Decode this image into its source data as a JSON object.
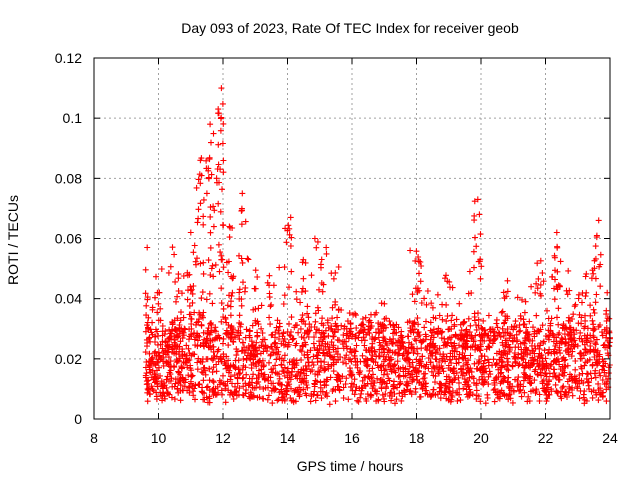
{
  "chart_data": {
    "type": "scatter",
    "title": "Day 093 of 2023, Rate Of TEC Index for receiver geob",
    "xlabel": "GPS time / hours",
    "ylabel": "ROTI / TECUs",
    "xlim": [
      8,
      24
    ],
    "ylim": [
      0,
      0.12
    ],
    "xticks": [
      "8",
      "10",
      "12",
      "14",
      "16",
      "18",
      "20",
      "22",
      "24"
    ],
    "yticks": [
      "0",
      "0.02",
      "0.04",
      "0.06",
      "0.08",
      "0.1",
      "0.12"
    ],
    "grid": true,
    "marker": "+",
    "color": "#ff0000",
    "series": [
      {
        "name": "ROTI",
        "envelope_hours": [
          9.6,
          10.0,
          10.5,
          11.0,
          11.3,
          11.6,
          11.9,
          12.2,
          12.6,
          13.0,
          13.5,
          14.0,
          14.5,
          15.0,
          15.5,
          16.0,
          16.5,
          17.0,
          17.5,
          18.0,
          18.5,
          19.0,
          19.5,
          19.9,
          20.3,
          20.8,
          21.3,
          21.8,
          22.3,
          22.8,
          23.2,
          23.6,
          24.0
        ],
        "envelope_max_roti": [
          0.056,
          0.05,
          0.058,
          0.062,
          0.087,
          0.099,
          0.11,
          0.064,
          0.074,
          0.05,
          0.048,
          0.066,
          0.058,
          0.06,
          0.052,
          0.036,
          0.036,
          0.04,
          0.03,
          0.056,
          0.042,
          0.05,
          0.034,
          0.073,
          0.03,
          0.046,
          0.04,
          0.052,
          0.062,
          0.05,
          0.048,
          0.066,
          0.04
        ],
        "typical_roti": [
          0.008,
          0.03
        ],
        "peak_points": [
          {
            "x": 11.95,
            "y": 0.11
          },
          {
            "x": 11.85,
            "y": 0.103
          },
          {
            "x": 11.6,
            "y": 0.098
          },
          {
            "x": 11.3,
            "y": 0.086
          },
          {
            "x": 11.8,
            "y": 0.08
          },
          {
            "x": 11.5,
            "y": 0.075
          },
          {
            "x": 12.6,
            "y": 0.075
          },
          {
            "x": 19.9,
            "y": 0.073
          },
          {
            "x": 19.95,
            "y": 0.068
          },
          {
            "x": 14.1,
            "y": 0.067
          },
          {
            "x": 23.65,
            "y": 0.066
          },
          {
            "x": 12.2,
            "y": 0.064
          },
          {
            "x": 22.35,
            "y": 0.062
          },
          {
            "x": 11.0,
            "y": 0.062
          },
          {
            "x": 14.85,
            "y": 0.06
          },
          {
            "x": 9.65,
            "y": 0.057
          },
          {
            "x": 17.8,
            "y": 0.056
          },
          {
            "x": 15.2,
            "y": 0.057
          }
        ]
      }
    ]
  }
}
